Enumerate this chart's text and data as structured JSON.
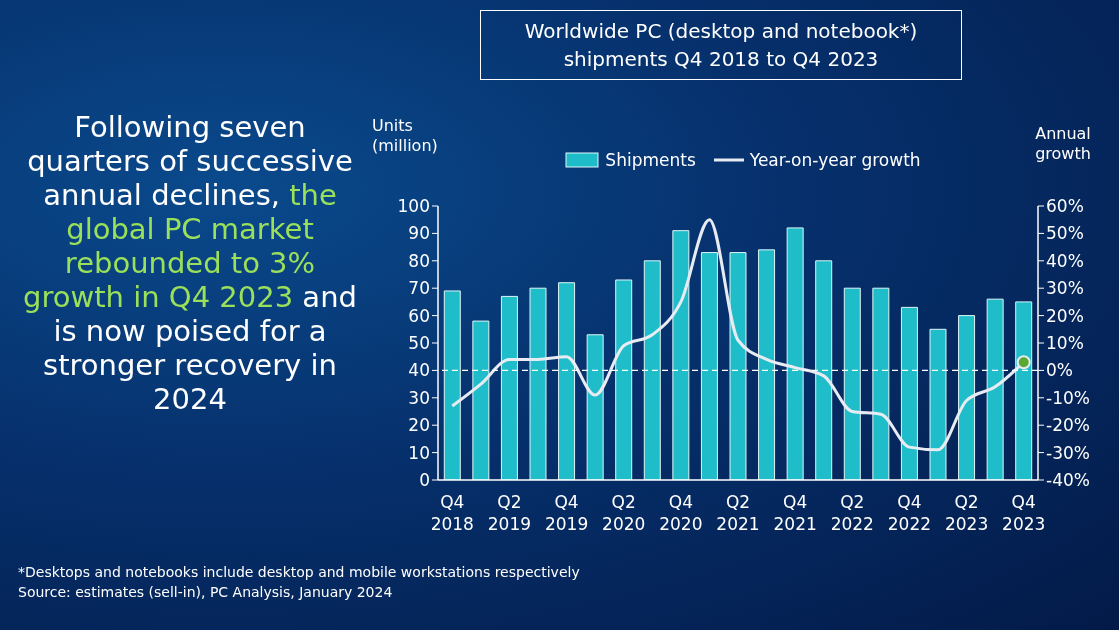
{
  "chart_data": {
    "type": "bar",
    "title": "Worldwide PC (desktop and notebook*) shipments Q4 2018 to Q4 2023",
    "xlabel": null,
    "ylabel": "Units (million)",
    "y2label": "Annual growth",
    "categories": [
      "Q4 2018",
      null,
      "Q2 2019",
      null,
      "Q4 2019",
      null,
      "Q2 2020",
      null,
      "Q4 2020",
      null,
      "Q2 2021",
      null,
      "Q4 2021",
      null,
      "Q2 2022",
      null,
      "Q4 2022",
      null,
      "Q2 2023",
      null,
      "Q4 2023"
    ],
    "series": [
      {
        "name": "Shipments",
        "color": "#1fbdc9",
        "values": [
          69,
          58,
          67,
          70,
          72,
          53,
          73,
          80,
          91,
          83,
          83,
          84,
          92,
          80,
          70,
          70,
          63,
          55,
          60,
          66,
          65
        ]
      },
      {
        "name": "Year-on-year growth",
        "type": "line",
        "axis": "y2",
        "color": "#e8ecf2",
        "values": [
          -13,
          -5,
          4,
          4,
          5,
          -9,
          9,
          13,
          25,
          55,
          11,
          4,
          1,
          -2,
          -15,
          -16,
          -28,
          -29,
          -11,
          -6,
          3
        ]
      },
      {
        "type": "scatter",
        "axis": "y2",
        "color": "#5aa832",
        "x": [
          "Q4 2023"
        ],
        "values": [
          3
        ]
      }
    ],
    "ylim": [
      0,
      100
    ],
    "yticks": [
      0,
      10,
      20,
      30,
      40,
      50,
      60,
      70,
      80,
      90,
      100
    ],
    "y2lim": [
      -40,
      60
    ],
    "y2ticks": [
      {
        "value": -40,
        "label": "-40%"
      },
      {
        "value": -30,
        "label": "-30%"
      },
      {
        "value": -20,
        "label": "-20%"
      },
      {
        "value": -10,
        "label": "-10%"
      },
      {
        "value": 0,
        "label": "0%"
      },
      {
        "value": 10,
        "label": "10%"
      },
      {
        "value": 20,
        "label": "20%"
      },
      {
        "value": 30,
        "label": "30%"
      },
      {
        "value": 40,
        "label": "40%"
      },
      {
        "value": 50,
        "label": "50%"
      },
      {
        "value": 60,
        "label": "60%"
      }
    ],
    "ref_lines": [
      {
        "axis": "y2",
        "value": 0,
        "color": "#ffffff",
        "line_style": "dashed"
      }
    ],
    "legend": "top",
    "grid": false,
    "annotations": [
      "Following seven quarters of successive annual declines,",
      "the global PC market rebounded to 3% growth in Q4 2023",
      "and is now poised for a stronger recovery in 2024",
      "*Desktops and notebooks include desktop and mobile workstations respectively",
      "Source: estimates (sell-in), PC Analysis, January 2024"
    ]
  }
}
